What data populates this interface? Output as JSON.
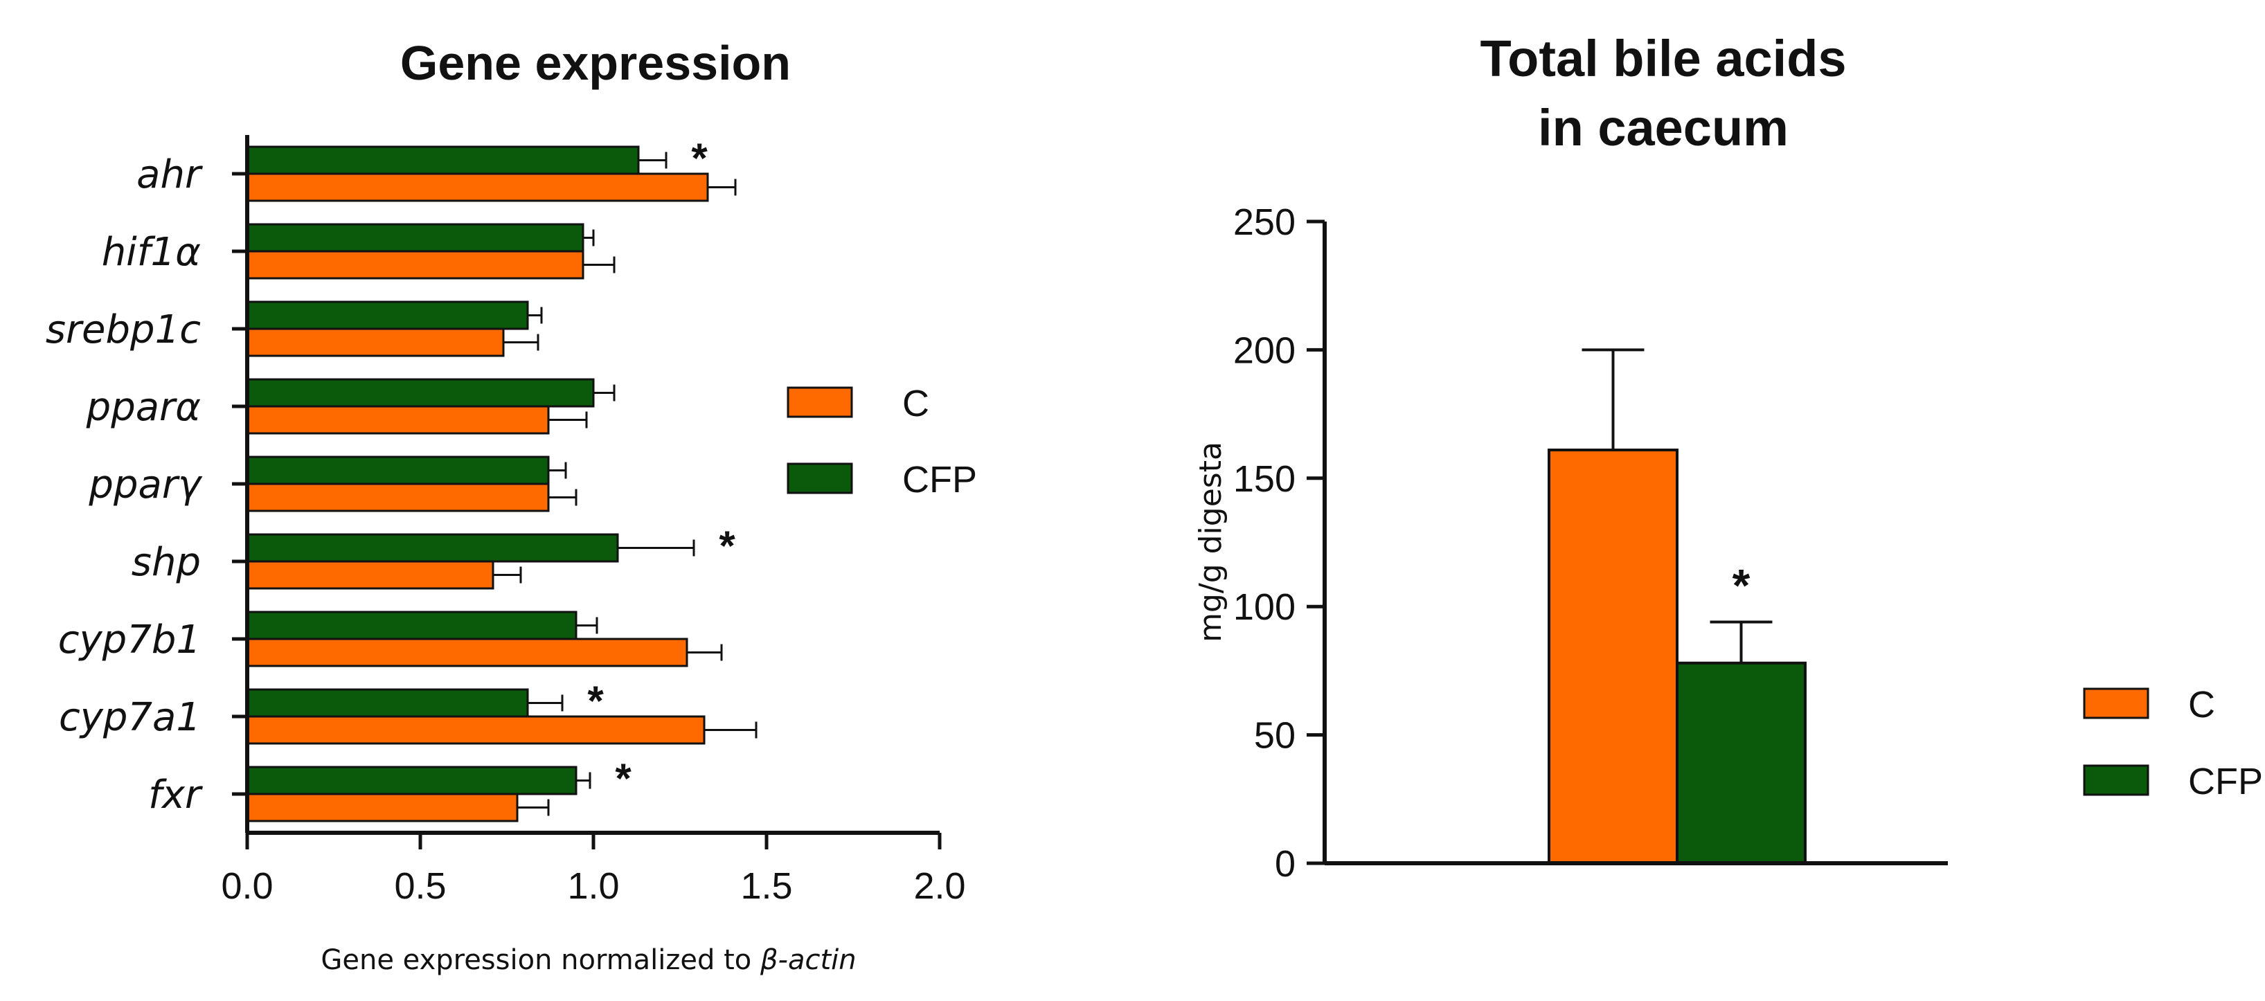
{
  "chart_data": [
    {
      "type": "bar",
      "orientation": "horizontal",
      "title": "Gene expression",
      "categories": [
        "ahr",
        "hif1α",
        "srebp1c",
        "pparα",
        "pparγ",
        "shp",
        "cyp7b1",
        "cyp7a1",
        "fxr"
      ],
      "series": [
        {
          "name": "CFP",
          "color": "#0b5a0b",
          "values": [
            1.13,
            0.97,
            0.81,
            1.0,
            0.87,
            1.07,
            0.95,
            0.81,
            0.95
          ],
          "errors": [
            0.08,
            0.03,
            0.04,
            0.06,
            0.05,
            0.22,
            0.06,
            0.1,
            0.04
          ]
        },
        {
          "name": "C",
          "color": "#ff6a00",
          "values": [
            1.33,
            0.97,
            0.74,
            0.87,
            0.87,
            0.71,
            1.27,
            1.32,
            0.78
          ],
          "errors": [
            0.08,
            0.09,
            0.1,
            0.11,
            0.08,
            0.08,
            0.1,
            0.15,
            0.09
          ]
        }
      ],
      "significance": [
        "*",
        "",
        "",
        "",
        "",
        "*",
        "",
        "*",
        "*"
      ],
      "xlim": [
        0.0,
        2.0
      ],
      "xticks": [
        "0.0",
        "0.5",
        "1.0",
        "1.5",
        "2.0"
      ],
      "xlabel_prefix": "Gene expression normalized to ",
      "xlabel_italic": "β-actin",
      "legend": [
        {
          "name": "C",
          "color": "#ff6a00"
        },
        {
          "name": "CFP",
          "color": "#0b5a0b"
        }
      ]
    },
    {
      "type": "bar",
      "title_lines": [
        "Total bile acids",
        "in caecum"
      ],
      "categories": [
        "C",
        "CFP"
      ],
      "values": [
        161,
        78
      ],
      "errors": [
        39,
        16
      ],
      "colors": [
        "#ff6a00",
        "#0b5a0b"
      ],
      "significance": [
        "",
        "*"
      ],
      "ylim": [
        0,
        250
      ],
      "yticks": [
        "0",
        "50",
        "100",
        "150",
        "200",
        "250"
      ],
      "ylabel": "mg/g digesta",
      "legend": [
        {
          "name": "C",
          "color": "#ff6a00"
        },
        {
          "name": "CFP",
          "color": "#0b5a0b"
        }
      ]
    }
  ]
}
